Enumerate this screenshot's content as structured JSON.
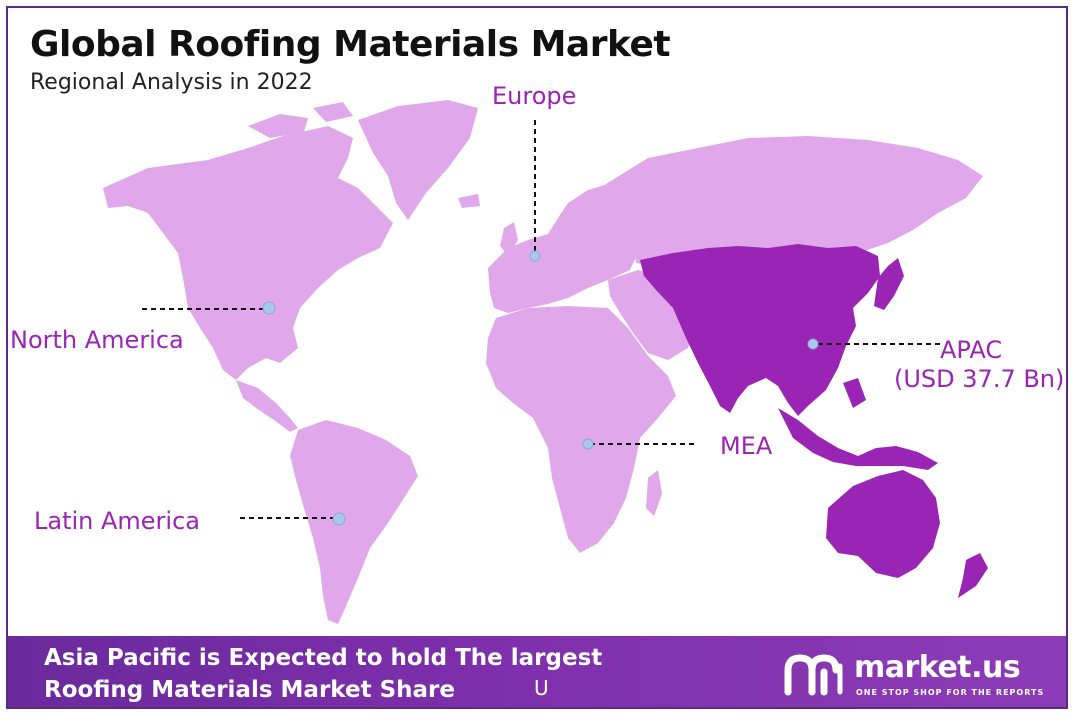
{
  "title": "Global Roofing Materials Market",
  "subtitle": "Regional Analysis in 2022",
  "colors": {
    "land": "#e0a8eb",
    "apac": "#9a25b5",
    "label": "#9a25b5",
    "marker": "#a9c6ec",
    "footer": "#7e2fab"
  },
  "regions": {
    "europe": {
      "label": "Europe"
    },
    "north_america": {
      "label": "North America"
    },
    "apac": {
      "label": "APAC",
      "value_label": "(USD 37.7 Bn)"
    },
    "mea": {
      "label": "MEA"
    },
    "latin_america": {
      "label": "Latin America"
    }
  },
  "highlighted_region": "apac",
  "footer": {
    "line1": "Asia Pacific is Expected to hold The largest",
    "line2": "Roofing Materials Market Share",
    "glyph": "U",
    "brand": "market.us",
    "tagline": "ONE STOP SHOP FOR THE REPORTS",
    "logo_icon": "market-us-logo-icon"
  }
}
